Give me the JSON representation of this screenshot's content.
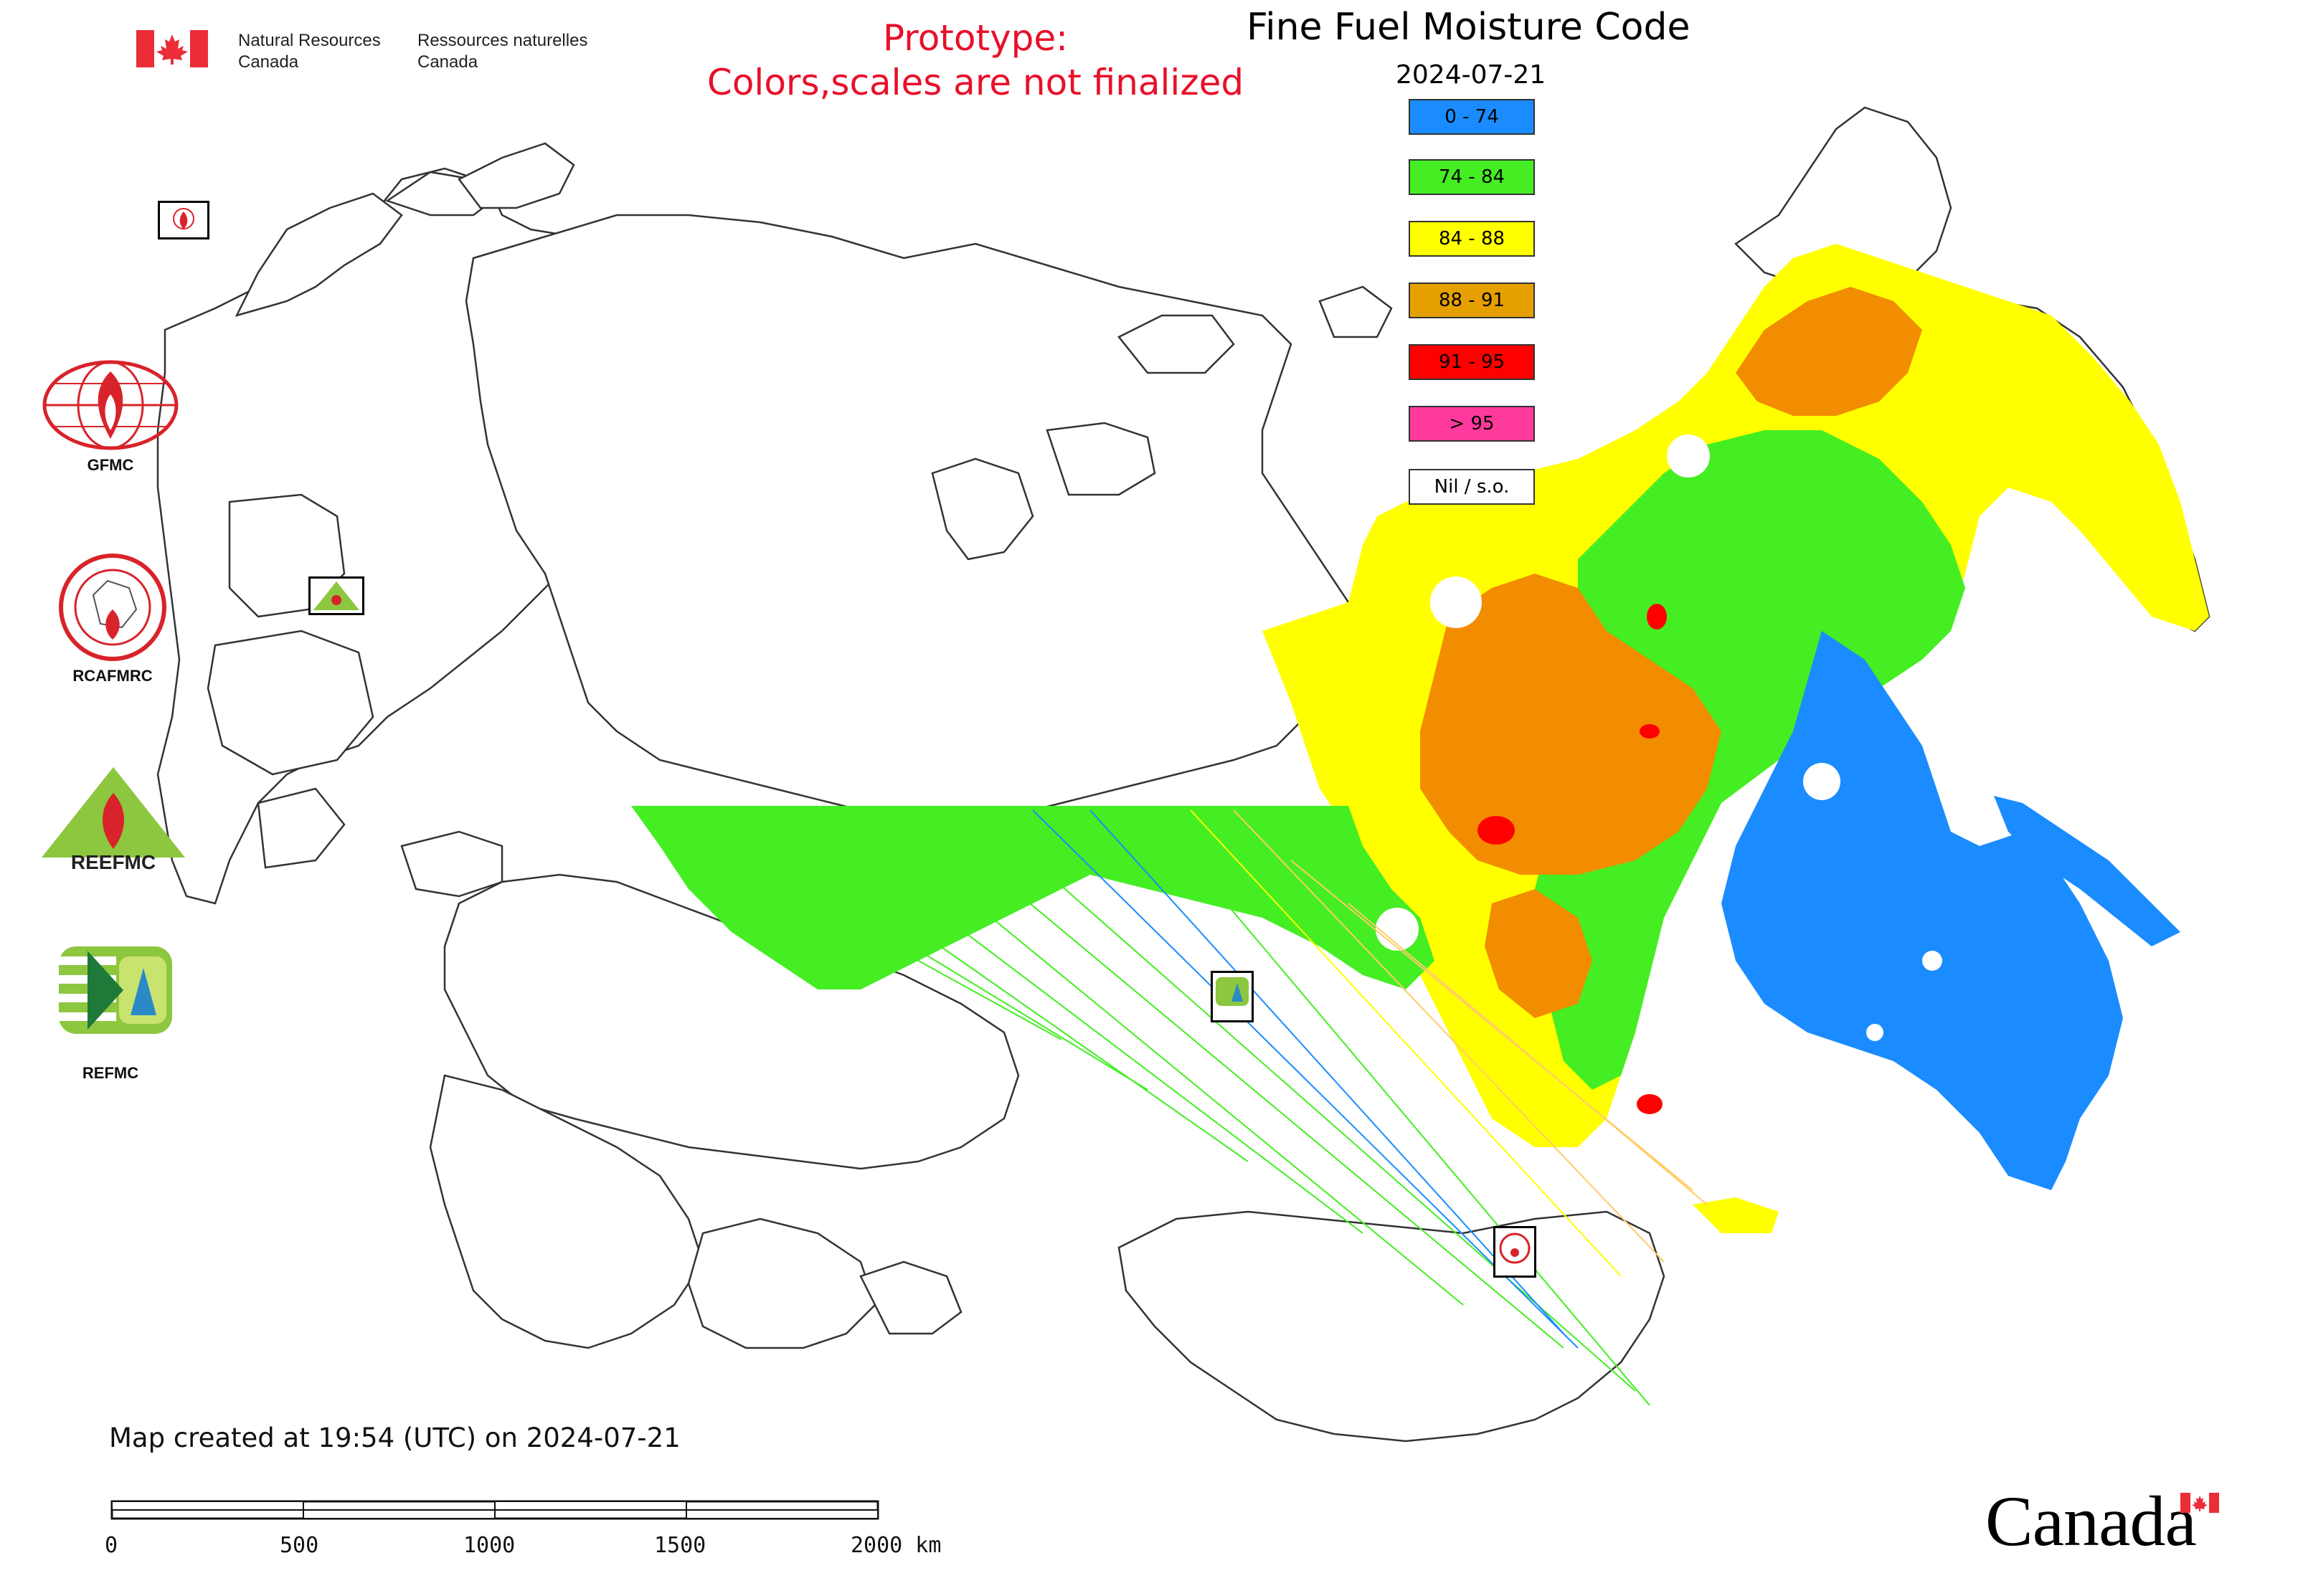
{
  "header": {
    "dept_en_line1": "Natural Resources",
    "dept_en_line2": "Canada",
    "dept_fr_line1": "Ressources naturelles",
    "dept_fr_line2": "Canada",
    "prototype_line1": "Prototype:",
    "prototype_line2": "Colors,scales are not finalized"
  },
  "map": {
    "title": "Fine Fuel Moisture Code",
    "date": "2024-07-21"
  },
  "legend": {
    "items": [
      {
        "label": "0 - 74",
        "color": "#1a8cff"
      },
      {
        "label": "74 - 84",
        "color": "#44ee22"
      },
      {
        "label": "84 - 88",
        "color": "#ffff00"
      },
      {
        "label": "88 - 91",
        "color": "#e5a000"
      },
      {
        "label": "91 - 95",
        "color": "#ff0000"
      },
      {
        "label": "> 95",
        "color": "#ff3a9c"
      },
      {
        "label": "Nil / s.o.",
        "color": "#ffffff"
      }
    ]
  },
  "agencies": {
    "gfmc": "GFMC",
    "rcafmrc": "RCAFMRC",
    "reefmc_logo_text": "REEFMC",
    "refmc": "REFMC"
  },
  "footer": {
    "created_text": "Map created at 19:54 (UTC) on 2024-07-21",
    "wordmark": "Canada"
  },
  "scale_bar": {
    "labels": [
      "0",
      "500",
      "1000",
      "1500",
      "2000 km"
    ]
  },
  "colors": {
    "prototype_red": "#e8102a",
    "canada_red": "#eb2d37",
    "border_line": "#333333"
  }
}
